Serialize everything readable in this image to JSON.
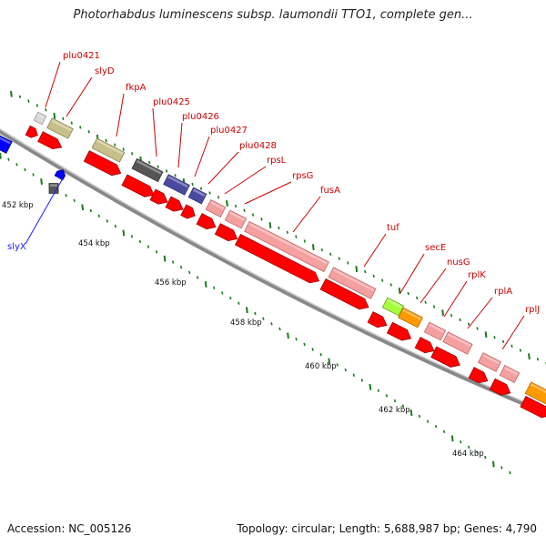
{
  "title": "Photorhabdus luminescens subsp. laumondii TTO1, complete gen...",
  "footer": {
    "accession": "Accession: NC_005126",
    "summary": "Topology: circular; Length: 5,688,987 bp; Genes: 4,790"
  },
  "colors": {
    "backbone": "#777777",
    "cds_forward": "#ff0000",
    "tick_major": "#1a7a1a",
    "label_text": "#cc0000",
    "label_blue": "#1a1aff"
  },
  "axis_labels": [
    "452 kbp",
    "454 kbp",
    "456 kbp",
    "458 kbp",
    "460 kbp",
    "462 kbp",
    "464 kbp"
  ],
  "genes": [
    {
      "name": "plu0421"
    },
    {
      "name": "slyD"
    },
    {
      "name": "slyX"
    },
    {
      "name": "fkpA"
    },
    {
      "name": "plu0425"
    },
    {
      "name": "plu0426"
    },
    {
      "name": "plu0427"
    },
    {
      "name": "plu0428"
    },
    {
      "name": "rpsL"
    },
    {
      "name": "rpsG"
    },
    {
      "name": "fusA"
    },
    {
      "name": "tuf"
    },
    {
      "name": "secE"
    },
    {
      "name": "nusG"
    },
    {
      "name": "rplK"
    },
    {
      "name": "rplA"
    },
    {
      "name": "rplJ"
    }
  ]
}
